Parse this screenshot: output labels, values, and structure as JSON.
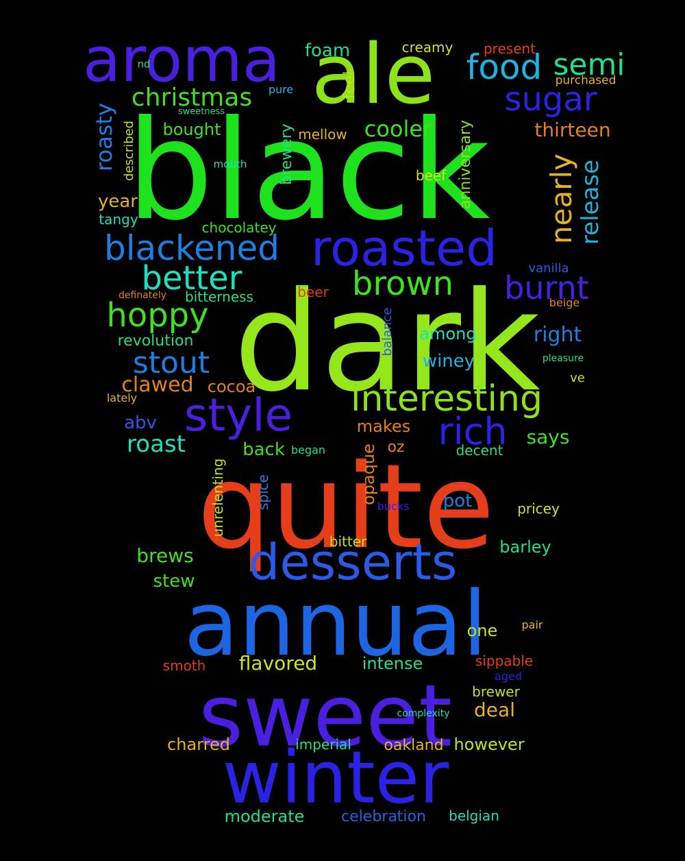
{
  "words": [
    {
      "text": "black",
      "color": "#1fe21f",
      "orientation": "horizontal"
    },
    {
      "text": "dark",
      "color": "#95e61a",
      "orientation": "horizontal"
    },
    {
      "text": "quite",
      "color": "#e63d1a",
      "orientation": "horizontal"
    },
    {
      "text": "annual",
      "color": "#1c66e3",
      "orientation": "horizontal"
    },
    {
      "text": "sweet",
      "color": "#4a1fe0",
      "orientation": "horizontal"
    },
    {
      "text": "winter",
      "color": "#2a22e6",
      "orientation": "horizontal"
    },
    {
      "text": "aroma",
      "color": "#4a1fe0",
      "orientation": "horizontal"
    },
    {
      "text": "ale",
      "color": "#8ee21a",
      "orientation": "horizontal"
    },
    {
      "text": "roasted",
      "color": "#2a22e6",
      "orientation": "horizontal"
    },
    {
      "text": "desserts",
      "color": "#2a5ae6",
      "orientation": "horizontal"
    },
    {
      "text": "interesting",
      "color": "#8ee21a",
      "orientation": "horizontal"
    },
    {
      "text": "style",
      "color": "#4a1fe0",
      "orientation": "horizontal"
    },
    {
      "text": "rich",
      "color": "#2a22e6",
      "orientation": "horizontal"
    },
    {
      "text": "blackened",
      "color": "#1c80e3",
      "orientation": "horizontal"
    },
    {
      "text": "food",
      "color": "#1cb4e3",
      "orientation": "horizontal"
    },
    {
      "text": "semi",
      "color": "#1fe08a",
      "orientation": "horizontal"
    },
    {
      "text": "sugar",
      "color": "#2a22e6",
      "orientation": "horizontal"
    },
    {
      "text": "brown",
      "color": "#3ee21f",
      "orientation": "horizontal"
    },
    {
      "text": "burnt",
      "color": "#4a1fe0",
      "orientation": "horizontal"
    },
    {
      "text": "better",
      "color": "#1ce0c0",
      "orientation": "horizontal"
    },
    {
      "text": "hoppy",
      "color": "#3ee21f",
      "orientation": "horizontal"
    },
    {
      "text": "stout",
      "color": "#1c80e3",
      "orientation": "horizontal"
    },
    {
      "text": "nearly",
      "color": "#e6b41a",
      "orientation": "vertical"
    },
    {
      "text": "release",
      "color": "#1cb4e3",
      "orientation": "vertical"
    },
    {
      "text": "christmas",
      "color": "#3ee21f",
      "orientation": "horizontal"
    },
    {
      "text": "cooler",
      "color": "#3ee21f",
      "orientation": "horizontal"
    },
    {
      "text": "thirteen",
      "color": "#e6801a",
      "orientation": "horizontal"
    },
    {
      "text": "roasty",
      "color": "#1c80e3",
      "orientation": "vertical"
    },
    {
      "text": "roast",
      "color": "#1ce0c0",
      "orientation": "horizontal"
    },
    {
      "text": "foam",
      "color": "#1fe08a",
      "orientation": "horizontal"
    },
    {
      "text": "creamy",
      "color": "#d4e21a",
      "orientation": "horizontal"
    },
    {
      "text": "present",
      "color": "#e63d1a",
      "orientation": "horizontal"
    },
    {
      "text": "purchased",
      "color": "#e6b41a",
      "orientation": "horizontal"
    },
    {
      "text": "feel",
      "color": "#c2e21a",
      "orientation": "vertical"
    },
    {
      "text": "nd",
      "color": "#1fe08a",
      "orientation": "horizontal"
    },
    {
      "text": "pure",
      "color": "#1cb4e3",
      "orientation": "horizontal"
    },
    {
      "text": "sweetness",
      "color": "#1fe08a",
      "orientation": "horizontal"
    },
    {
      "text": "bought",
      "color": "#3ee21f",
      "orientation": "horizontal"
    },
    {
      "text": "mellow",
      "color": "#e6b41a",
      "orientation": "horizontal"
    },
    {
      "text": "brewery",
      "color": "#1fe08a",
      "orientation": "vertical"
    },
    {
      "text": "described",
      "color": "#c2e21a",
      "orientation": "vertical"
    },
    {
      "text": "mouth",
      "color": "#1ce0c0",
      "orientation": "horizontal"
    },
    {
      "text": "beef",
      "color": "#d4e21a",
      "orientation": "horizontal"
    },
    {
      "text": "anniversary",
      "color": "#8ee21a",
      "orientation": "vertical"
    },
    {
      "text": "year",
      "color": "#e6b41a",
      "orientation": "horizontal"
    },
    {
      "text": "tangy",
      "color": "#1ce0c0",
      "orientation": "horizontal"
    },
    {
      "text": "chocolatey",
      "color": "#3ee21f",
      "orientation": "horizontal"
    },
    {
      "text": "vanilla",
      "color": "#2a5ae6",
      "orientation": "horizontal"
    },
    {
      "text": "definately",
      "color": "#e6801a",
      "orientation": "horizontal"
    },
    {
      "text": "bitterness",
      "color": "#1fe08a",
      "orientation": "horizontal"
    },
    {
      "text": "beer",
      "color": "#e63d1a",
      "orientation": "horizontal"
    },
    {
      "text": "beige",
      "color": "#e6801a",
      "orientation": "horizontal"
    },
    {
      "text": "balance",
      "color": "#2a5ae6",
      "orientation": "vertical"
    },
    {
      "text": "revolution",
      "color": "#1fe08a",
      "orientation": "horizontal"
    },
    {
      "text": "among",
      "color": "#1ce0c0",
      "orientation": "horizontal"
    },
    {
      "text": "right",
      "color": "#1c80e3",
      "orientation": "horizontal"
    },
    {
      "text": "pleasure",
      "color": "#1fe08a",
      "orientation": "horizontal"
    },
    {
      "text": "winey",
      "color": "#1cb4e3",
      "orientation": "horizontal"
    },
    {
      "text": "clawed",
      "color": "#e6801a",
      "orientation": "horizontal"
    },
    {
      "text": "cocoa",
      "color": "#e6801a",
      "orientation": "horizontal"
    },
    {
      "text": "ve",
      "color": "#c2e21a",
      "orientation": "horizontal"
    },
    {
      "text": "lately",
      "color": "#e6b41a",
      "orientation": "horizontal"
    },
    {
      "text": "abv",
      "color": "#2a5ae6",
      "orientation": "horizontal"
    },
    {
      "text": "makes",
      "color": "#e6801a",
      "orientation": "horizontal"
    },
    {
      "text": "says",
      "color": "#3ee21f",
      "orientation": "horizontal"
    },
    {
      "text": "back",
      "color": "#3ee21f",
      "orientation": "horizontal"
    },
    {
      "text": "began",
      "color": "#1fe08a",
      "orientation": "horizontal"
    },
    {
      "text": "oz",
      "color": "#e6801a",
      "orientation": "horizontal"
    },
    {
      "text": "decent",
      "color": "#1fe08a",
      "orientation": "horizontal"
    },
    {
      "text": "opaque",
      "color": "#e6801a",
      "orientation": "vertical"
    },
    {
      "text": "unrelenting",
      "color": "#c2e21a",
      "orientation": "vertical"
    },
    {
      "text": "spice",
      "color": "#1c80e3",
      "orientation": "vertical"
    },
    {
      "text": "pot",
      "color": "#1c80e3",
      "orientation": "horizontal"
    },
    {
      "text": "bucks",
      "color": "#2a22e6",
      "orientation": "horizontal"
    },
    {
      "text": "pricey",
      "color": "#d4e21a",
      "orientation": "horizontal"
    },
    {
      "text": "bitter",
      "color": "#c2e21a",
      "orientation": "horizontal"
    },
    {
      "text": "brews",
      "color": "#3ee21f",
      "orientation": "horizontal"
    },
    {
      "text": "barley",
      "color": "#1fe08a",
      "orientation": "horizontal"
    },
    {
      "text": "stew",
      "color": "#3ee21f",
      "orientation": "horizontal"
    },
    {
      "text": "one",
      "color": "#c2e21a",
      "orientation": "horizontal"
    },
    {
      "text": "pair",
      "color": "#e6b41a",
      "orientation": "horizontal"
    },
    {
      "text": "smoth",
      "color": "#e63d1a",
      "orientation": "horizontal"
    },
    {
      "text": "flavored",
      "color": "#d4e21a",
      "orientation": "horizontal"
    },
    {
      "text": "intense",
      "color": "#1fe08a",
      "orientation": "horizontal"
    },
    {
      "text": "sippable",
      "color": "#e63d1a",
      "orientation": "horizontal"
    },
    {
      "text": "aged",
      "color": "#2a22e6",
      "orientation": "horizontal"
    },
    {
      "text": "brewer",
      "color": "#c2e21a",
      "orientation": "horizontal"
    },
    {
      "text": "deal",
      "color": "#e6b41a",
      "orientation": "horizontal"
    },
    {
      "text": "complexity",
      "color": "#1ce0c0",
      "orientation": "horizontal"
    },
    {
      "text": "charred",
      "color": "#e6b41a",
      "orientation": "horizontal"
    },
    {
      "text": "imperial",
      "color": "#1fe08a",
      "orientation": "horizontal"
    },
    {
      "text": "oakland",
      "color": "#e6b41a",
      "orientation": "horizontal"
    },
    {
      "text": "however",
      "color": "#c2e21a",
      "orientation": "horizontal"
    },
    {
      "text": "moderate",
      "color": "#1fe08a",
      "orientation": "horizontal"
    },
    {
      "text": "celebration",
      "color": "#1c66e3",
      "orientation": "horizontal"
    },
    {
      "text": "belgian",
      "color": "#1ce0c0",
      "orientation": "horizontal"
    }
  ]
}
